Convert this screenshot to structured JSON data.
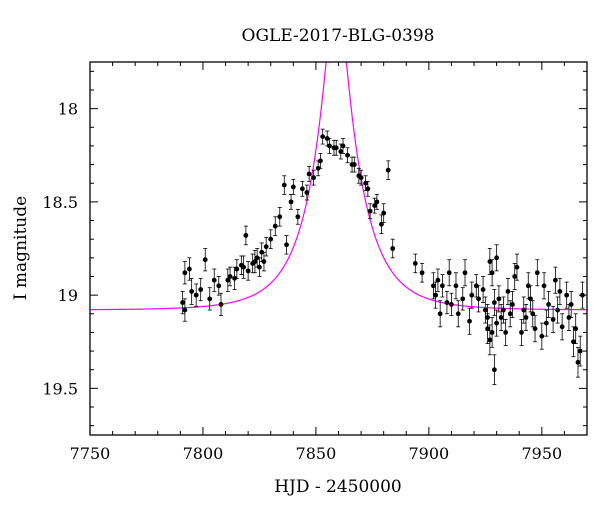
{
  "chart_data": {
    "type": "scatter",
    "title": "OGLE-2017-BLG-0398",
    "xlabel": "HJD - 2450000",
    "ylabel": "I magnitude",
    "xlim": [
      7750,
      7970
    ],
    "ylim": [
      19.75,
      17.75
    ],
    "y_inverted": true,
    "x_ticks": [
      7750,
      7800,
      7850,
      7900,
      7950
    ],
    "y_ticks": [
      18,
      18.5,
      19,
      19.5
    ],
    "x_tick_labels": [
      "7750",
      "7800",
      "7850",
      "7900",
      "7950"
    ],
    "y_tick_labels": [
      "18",
      "18.5",
      "19",
      "19.5"
    ],
    "grid": false,
    "colors": {
      "data": "#000000",
      "model": "#ff00ff"
    },
    "series": [
      {
        "kind": "data_with_errorbars",
        "points": [
          [
            7791,
            19.04,
            0.06
          ],
          [
            7792,
            18.88,
            0.06
          ],
          [
            7792,
            19.08,
            0.06
          ],
          [
            7794,
            18.86,
            0.06
          ],
          [
            7795,
            18.98,
            0.07
          ],
          [
            7797,
            19.0,
            0.06
          ],
          [
            7799,
            18.97,
            0.06
          ],
          [
            7801,
            18.81,
            0.06
          ],
          [
            7803,
            19.02,
            0.06
          ],
          [
            7805,
            18.92,
            0.06
          ],
          [
            7807,
            18.95,
            0.05
          ],
          [
            7808,
            19.05,
            0.06
          ],
          [
            7811,
            18.92,
            0.06
          ],
          [
            7812,
            18.9,
            0.05
          ],
          [
            7814,
            18.91,
            0.06
          ],
          [
            7815,
            18.86,
            0.05
          ],
          [
            7817,
            18.84,
            0.05
          ],
          [
            7818,
            18.85,
            0.06
          ],
          [
            7819,
            18.68,
            0.05
          ],
          [
            7820,
            18.87,
            0.05
          ],
          [
            7822,
            18.83,
            0.05
          ],
          [
            7823,
            18.82,
            0.06
          ],
          [
            7824,
            18.8,
            0.05
          ],
          [
            7825,
            18.85,
            0.05
          ],
          [
            7826,
            18.77,
            0.05
          ],
          [
            7827,
            18.82,
            0.05
          ],
          [
            7828,
            18.74,
            0.05
          ],
          [
            7830,
            18.7,
            0.05
          ],
          [
            7832,
            18.63,
            0.05
          ],
          [
            7834,
            18.58,
            0.05
          ],
          [
            7836,
            18.41,
            0.05
          ],
          [
            7837,
            18.73,
            0.05
          ],
          [
            7839,
            18.5,
            0.04
          ],
          [
            7840,
            18.42,
            0.04
          ],
          [
            7842,
            18.58,
            0.04
          ],
          [
            7844,
            18.43,
            0.04
          ],
          [
            7846,
            18.45,
            0.04
          ],
          [
            7847,
            18.35,
            0.04
          ],
          [
            7849,
            18.37,
            0.04
          ],
          [
            7851,
            18.32,
            0.04
          ],
          [
            7852,
            18.28,
            0.04
          ],
          [
            7853,
            18.15,
            0.04
          ],
          [
            7855,
            18.16,
            0.04
          ],
          [
            7856,
            18.2,
            0.04
          ],
          [
            7858,
            18.21,
            0.04
          ],
          [
            7859,
            18.21,
            0.04
          ],
          [
            7861,
            18.23,
            0.04
          ],
          [
            7862,
            18.2,
            0.04
          ],
          [
            7864,
            18.25,
            0.04
          ],
          [
            7866,
            18.3,
            0.04
          ],
          [
            7867,
            18.3,
            0.04
          ],
          [
            7869,
            18.36,
            0.04
          ],
          [
            7870,
            18.37,
            0.04
          ],
          [
            7872,
            18.4,
            0.04
          ],
          [
            7873,
            18.43,
            0.04
          ],
          [
            7874,
            18.55,
            0.04
          ],
          [
            7876,
            18.52,
            0.04
          ],
          [
            7877,
            18.5,
            0.04
          ],
          [
            7879,
            18.62,
            0.05
          ],
          [
            7880,
            18.56,
            0.05
          ],
          [
            7882,
            18.33,
            0.05
          ],
          [
            7884,
            18.75,
            0.05
          ],
          [
            7894,
            18.83,
            0.05
          ],
          [
            7897,
            18.88,
            0.05
          ],
          [
            7902,
            18.95,
            0.07
          ],
          [
            7903,
            19.0,
            0.07
          ],
          [
            7904,
            18.92,
            0.06
          ],
          [
            7905,
            19.1,
            0.07
          ],
          [
            7906,
            18.95,
            0.06
          ],
          [
            7908,
            19.04,
            0.06
          ],
          [
            7909,
            18.88,
            0.07
          ],
          [
            7910,
            19.05,
            0.06
          ],
          [
            7912,
            18.95,
            0.07
          ],
          [
            7913,
            19.1,
            0.07
          ],
          [
            7915,
            19.02,
            0.06
          ],
          [
            7916,
            18.88,
            0.07
          ],
          [
            7918,
            19.14,
            0.07
          ],
          [
            7919,
            19.0,
            0.07
          ],
          [
            7921,
            18.95,
            0.06
          ],
          [
            7922,
            19.02,
            0.07
          ],
          [
            7924,
            18.97,
            0.07
          ],
          [
            7925,
            19.08,
            0.07
          ],
          [
            7926,
            19.12,
            0.07
          ],
          [
            7926,
            19.18,
            0.08
          ],
          [
            7927,
            19.24,
            0.08
          ],
          [
            7927,
            18.82,
            0.07
          ],
          [
            7928,
            19.2,
            0.08
          ],
          [
            7928,
            18.88,
            0.07
          ],
          [
            7929,
            19.04,
            0.07
          ],
          [
            7929,
            19.4,
            0.08
          ],
          [
            7930,
            19.15,
            0.07
          ],
          [
            7930,
            18.8,
            0.07
          ],
          [
            7931,
            19.02,
            0.07
          ],
          [
            7932,
            19.12,
            0.07
          ],
          [
            7933,
            19.08,
            0.07
          ],
          [
            7934,
            19.2,
            0.07
          ],
          [
            7935,
            18.98,
            0.07
          ],
          [
            7936,
            19.1,
            0.07
          ],
          [
            7937,
            19.05,
            0.07
          ],
          [
            7938,
            18.9,
            0.07
          ],
          [
            7939,
            18.85,
            0.07
          ],
          [
            7941,
            19.2,
            0.07
          ],
          [
            7942,
            19.08,
            0.07
          ],
          [
            7943,
            19.12,
            0.07
          ],
          [
            7944,
            18.95,
            0.07
          ],
          [
            7945,
            19.02,
            0.07
          ],
          [
            7946,
            19.1,
            0.07
          ],
          [
            7947,
            19.18,
            0.07
          ],
          [
            7948,
            18.88,
            0.07
          ],
          [
            7950,
            19.22,
            0.07
          ],
          [
            7951,
            18.95,
            0.07
          ],
          [
            7952,
            19.15,
            0.07
          ],
          [
            7953,
            19.05,
            0.07
          ],
          [
            7955,
            19.13,
            0.07
          ],
          [
            7956,
            18.92,
            0.07
          ],
          [
            7957,
            19.08,
            0.07
          ],
          [
            7958,
            18.98,
            0.07
          ],
          [
            7959,
            19.17,
            0.07
          ],
          [
            7961,
            19.0,
            0.07
          ],
          [
            7962,
            19.12,
            0.07
          ],
          [
            7963,
            19.05,
            0.07
          ],
          [
            7964,
            19.25,
            0.08
          ],
          [
            7965,
            19.18,
            0.08
          ],
          [
            7966,
            19.36,
            0.08
          ],
          [
            7967,
            19.3,
            0.08
          ],
          [
            7968,
            19.0,
            0.07
          ]
        ]
      },
      {
        "kind": "model_curve",
        "model": {
          "t0": 7859,
          "tE": 20,
          "u0": 0.205,
          "base_mag": 19.08
        }
      }
    ]
  }
}
